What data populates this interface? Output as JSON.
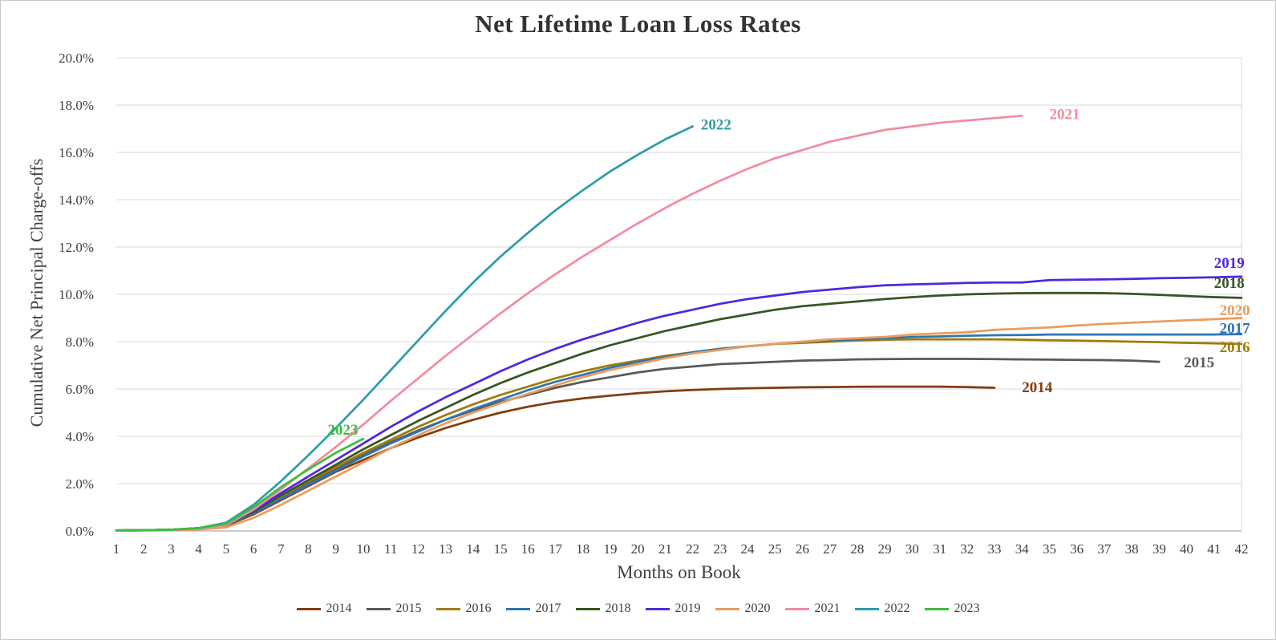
{
  "chart_data": {
    "type": "line",
    "title": "Net Lifetime Loan Loss Rates",
    "xlabel": "Months on Book",
    "ylabel": "Cumulative Net Principal Charge-offs",
    "xlim": [
      1,
      42
    ],
    "ylim": [
      0,
      20
    ],
    "grid": "horizontal",
    "legend_position": "bottom",
    "x_ticks": [
      1,
      2,
      3,
      4,
      5,
      6,
      7,
      8,
      9,
      10,
      11,
      12,
      13,
      14,
      15,
      16,
      17,
      18,
      19,
      20,
      21,
      22,
      23,
      24,
      25,
      26,
      27,
      28,
      29,
      30,
      31,
      32,
      33,
      34,
      35,
      36,
      37,
      38,
      39,
      40,
      41,
      42
    ],
    "y_ticks": [
      0,
      2,
      4,
      6,
      8,
      10,
      12,
      14,
      16,
      18,
      20
    ],
    "y_tick_labels": [
      "0.0%",
      "2.0%",
      "4.0%",
      "6.0%",
      "8.0%",
      "10.0%",
      "12.0%",
      "14.0%",
      "16.0%",
      "18.0%",
      "20.0%"
    ],
    "colors": {
      "grid": "#d9d9d9",
      "axis": "#ababab",
      "text": "#404040",
      "title": "#333333"
    },
    "series": [
      {
        "name": "2014",
        "color": "#843c0c",
        "label": {
          "month": 34.0,
          "value": 6.05
        },
        "values": [
          0.02,
          0.03,
          0.05,
          0.1,
          0.22,
          0.7,
          1.3,
          1.9,
          2.5,
          3.0,
          3.5,
          3.95,
          4.35,
          4.7,
          5.0,
          5.25,
          5.45,
          5.6,
          5.72,
          5.82,
          5.9,
          5.96,
          6.0,
          6.03,
          6.05,
          6.07,
          6.08,
          6.09,
          6.1,
          6.1,
          6.1,
          6.08,
          6.05
        ]
      },
      {
        "name": "2015",
        "color": "#595959",
        "label": {
          "month": 39.9,
          "value": 7.1
        },
        "values": [
          0.02,
          0.03,
          0.05,
          0.1,
          0.25,
          0.75,
          1.4,
          2.0,
          2.6,
          3.2,
          3.75,
          4.25,
          4.7,
          5.1,
          5.45,
          5.75,
          6.05,
          6.3,
          6.5,
          6.7,
          6.85,
          6.95,
          7.05,
          7.1,
          7.15,
          7.2,
          7.22,
          7.25,
          7.26,
          7.27,
          7.27,
          7.27,
          7.26,
          7.25,
          7.24,
          7.23,
          7.22,
          7.2,
          7.15
        ]
      },
      {
        "name": "2016",
        "color": "#9e7c0a",
        "label": {
          "month": 41.2,
          "value": 7.75
        },
        "values": [
          0.02,
          0.03,
          0.05,
          0.1,
          0.25,
          0.8,
          1.45,
          2.1,
          2.7,
          3.3,
          3.85,
          4.4,
          4.9,
          5.35,
          5.75,
          6.1,
          6.45,
          6.75,
          7.0,
          7.2,
          7.4,
          7.55,
          7.7,
          7.8,
          7.9,
          7.95,
          8.0,
          8.05,
          8.08,
          8.1,
          8.1,
          8.1,
          8.1,
          8.08,
          8.06,
          8.04,
          8.02,
          8.0,
          7.98,
          7.95,
          7.93,
          7.9
        ]
      },
      {
        "name": "2017",
        "color": "#2e75b6",
        "label": {
          "month": 41.2,
          "value": 8.55
        },
        "values": [
          0.02,
          0.03,
          0.05,
          0.1,
          0.25,
          0.75,
          1.35,
          1.95,
          2.55,
          3.15,
          3.7,
          4.2,
          4.7,
          5.15,
          5.55,
          5.95,
          6.3,
          6.6,
          6.9,
          7.15,
          7.35,
          7.55,
          7.7,
          7.8,
          7.9,
          8.0,
          8.05,
          8.1,
          8.15,
          8.2,
          8.22,
          8.25,
          8.27,
          8.28,
          8.3,
          8.3,
          8.3,
          8.3,
          8.3,
          8.3,
          8.3,
          8.32
        ]
      },
      {
        "name": "2018",
        "color": "#375623",
        "label": {
          "month": 41.0,
          "value": 10.45
        },
        "values": [
          0.02,
          0.03,
          0.05,
          0.12,
          0.3,
          0.8,
          1.5,
          2.15,
          2.8,
          3.45,
          4.05,
          4.65,
          5.2,
          5.75,
          6.25,
          6.7,
          7.1,
          7.5,
          7.85,
          8.15,
          8.45,
          8.7,
          8.95,
          9.15,
          9.35,
          9.5,
          9.6,
          9.7,
          9.8,
          9.88,
          9.95,
          10.0,
          10.03,
          10.05,
          10.06,
          10.06,
          10.05,
          10.02,
          9.98,
          9.93,
          9.88,
          9.85
        ]
      },
      {
        "name": "2019",
        "color": "#5226e0",
        "label": {
          "month": 41.0,
          "value": 11.3
        },
        "values": [
          0.02,
          0.03,
          0.05,
          0.12,
          0.3,
          0.85,
          1.6,
          2.3,
          3.0,
          3.7,
          4.4,
          5.05,
          5.65,
          6.2,
          6.75,
          7.25,
          7.7,
          8.1,
          8.45,
          8.8,
          9.1,
          9.35,
          9.6,
          9.8,
          9.95,
          10.1,
          10.2,
          10.3,
          10.38,
          10.42,
          10.45,
          10.48,
          10.5,
          10.5,
          10.6,
          10.62,
          10.63,
          10.65,
          10.68,
          10.7,
          10.72,
          10.75
        ]
      },
      {
        "name": "2020",
        "color": "#ec9c5d",
        "label": {
          "month": 41.2,
          "value": 9.3
        },
        "values": [
          0.01,
          0.02,
          0.03,
          0.06,
          0.15,
          0.55,
          1.1,
          1.7,
          2.3,
          2.9,
          3.5,
          4.05,
          4.55,
          5.0,
          5.4,
          5.8,
          6.15,
          6.5,
          6.8,
          7.05,
          7.3,
          7.5,
          7.65,
          7.8,
          7.9,
          8.0,
          8.1,
          8.15,
          8.2,
          8.3,
          8.35,
          8.4,
          8.5,
          8.55,
          8.6,
          8.68,
          8.75,
          8.8,
          8.85,
          8.9,
          8.95,
          9.0
        ]
      },
      {
        "name": "2021",
        "color": "#f28ca0",
        "label": {
          "month": 35.0,
          "value": 17.6
        },
        "values": [
          0.02,
          0.03,
          0.05,
          0.1,
          0.25,
          0.9,
          1.75,
          2.65,
          3.55,
          4.5,
          5.5,
          6.45,
          7.4,
          8.3,
          9.2,
          10.05,
          10.85,
          11.6,
          12.3,
          13.0,
          13.65,
          14.25,
          14.8,
          15.3,
          15.75,
          16.1,
          16.45,
          16.7,
          16.95,
          17.1,
          17.25,
          17.35,
          17.45,
          17.55
        ]
      },
      {
        "name": "2022",
        "color": "#2e9da6",
        "label": {
          "month": 22.3,
          "value": 17.15
        },
        "values": [
          0.02,
          0.03,
          0.05,
          0.12,
          0.35,
          1.1,
          2.1,
          3.2,
          4.35,
          5.55,
          6.8,
          8.05,
          9.3,
          10.5,
          11.6,
          12.6,
          13.55,
          14.4,
          15.2,
          15.9,
          16.55,
          17.1
        ]
      },
      {
        "name": "2023",
        "color": "#3dbe3d",
        "label": {
          "month": 8.7,
          "value": 4.25
        },
        "values": [
          0.02,
          0.03,
          0.05,
          0.12,
          0.3,
          1.0,
          1.85,
          2.6,
          3.3,
          3.9
        ]
      }
    ]
  }
}
